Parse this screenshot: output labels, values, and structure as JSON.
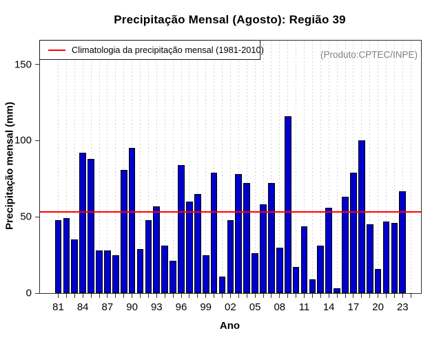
{
  "title": "Precipitação Mensal (Agosto): Região 39",
  "annotation": "(Produto:CPTEC/INPE)",
  "legend": {
    "label": "Climatologia da precipitação mensal (1981-2010)"
  },
  "colors": {
    "bar_fill": "#0000CD",
    "bar_border": "#000000",
    "climatology_line": "#FF0000",
    "grid": "#D4D4D4",
    "axis": "#2F2F2F",
    "annotation_text": "#808080"
  },
  "chart_data": {
    "type": "bar",
    "title": "Precipitação Mensal (Agosto): Região 39",
    "xlabel": "Ano",
    "ylabel": "Precipitação mensal (mm)",
    "ylim": [
      0,
      165.6
    ],
    "y_ticks": [
      0,
      50,
      100,
      150
    ],
    "grid": "vertical dashed line per year",
    "legend_position": "top-left inside plot",
    "climatology_value": 53.4,
    "x_axis_start_year": 1981,
    "x_axis_end_tick_year": 2024,
    "x_tick_label_years": [
      1981,
      1984,
      1987,
      1990,
      1993,
      1996,
      1999,
      2002,
      2005,
      2008,
      2011,
      2014,
      2017,
      2020,
      2023
    ],
    "x_tick_labels": [
      "81",
      "84",
      "87",
      "90",
      "93",
      "96",
      "99",
      "02",
      "05",
      "08",
      "11",
      "14",
      "17",
      "20",
      "23"
    ],
    "years": [
      1981,
      1982,
      1983,
      1984,
      1985,
      1986,
      1987,
      1988,
      1989,
      1990,
      1991,
      1992,
      1993,
      1994,
      1995,
      1996,
      1997,
      1998,
      1999,
      2000,
      2001,
      2002,
      2003,
      2004,
      2005,
      2006,
      2007,
      2008,
      2009,
      2010,
      2011,
      2012,
      2013,
      2014,
      2015,
      2016,
      2017,
      2018,
      2019,
      2020,
      2021,
      2022,
      2023
    ],
    "values": [
      48,
      49,
      35,
      92,
      88,
      28,
      28,
      25,
      81,
      95,
      29,
      48,
      57,
      31,
      21,
      84,
      60,
      65,
      25,
      79,
      11,
      48,
      78,
      72,
      26,
      58,
      72,
      30,
      116,
      17,
      44,
      9,
      31,
      56,
      3,
      63,
      79,
      100,
      45,
      16,
      47,
      46,
      67
    ]
  }
}
